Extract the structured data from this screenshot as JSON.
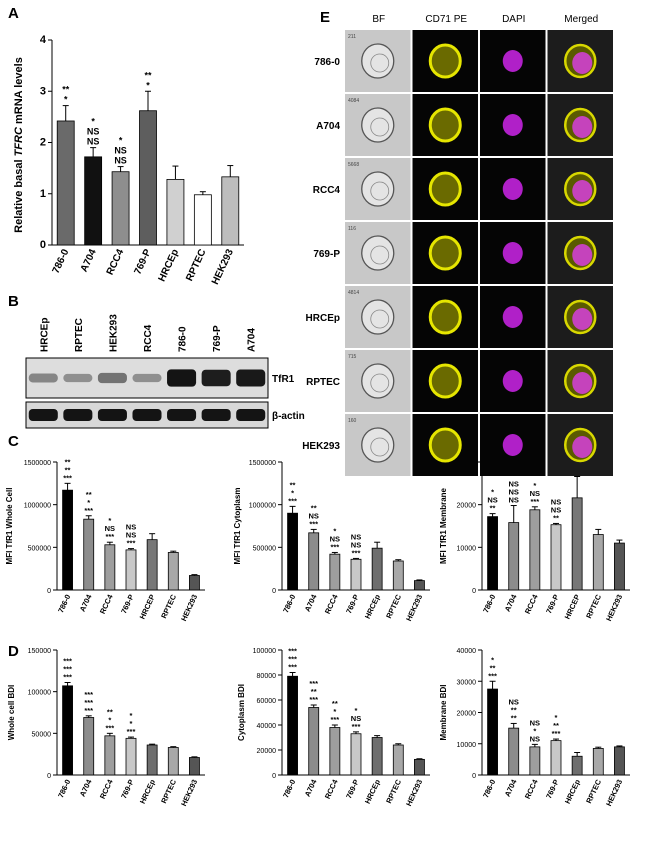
{
  "panels": {
    "A": "A",
    "B": "B",
    "C": "C",
    "D": "D",
    "E": "E"
  },
  "colors": {
    "786-0": "#000000",
    "A704": "#8c8c8c",
    "RCC4": "#9e9e9e",
    "769-P": "#c8c8c8",
    "HRCEp": "#6e6e6e",
    "RPTEC": "#a8a8a8",
    "HEK293": "#555555",
    "A_786-0": "#6a6a6a",
    "A_A704": "#111111",
    "A_RCC4": "#8e8e8e",
    "A_769-P": "#5e5e5e",
    "A_HRCEp": "#d0d0d0",
    "A_RPTEC": "#ffffff",
    "A_HEK293": "#bdbdbd"
  },
  "chart_data": [
    {
      "id": "A",
      "type": "bar",
      "categories": [
        "786-0",
        "A704",
        "RCC4",
        "769-P",
        "HRCEp",
        "RPTEC",
        "HEK293"
      ],
      "values": [
        2.42,
        1.72,
        1.43,
        2.62,
        1.28,
        0.98,
        1.33
      ],
      "errors": [
        0.3,
        0.18,
        0.1,
        0.38,
        0.26,
        0.06,
        0.22
      ],
      "ylim": [
        0,
        4
      ],
      "yticks": [
        0,
        1,
        2,
        3,
        4
      ],
      "ylabel": "Relative basal TFRC mRNA levels",
      "annotations": [
        [
          "**",
          "*"
        ],
        [
          "*",
          "NS",
          "NS"
        ],
        [
          "*",
          "NS",
          "NS"
        ],
        [
          "**",
          "*"
        ],
        [],
        [],
        []
      ]
    },
    {
      "id": "C1",
      "type": "bar",
      "categories": [
        "786-0",
        "A704",
        "RCC4",
        "769-P",
        "HRCEP",
        "RPTEC",
        "HEK293"
      ],
      "values": [
        1170000,
        830000,
        530000,
        470000,
        590000,
        440000,
        170000
      ],
      "errors": [
        80000,
        40000,
        30000,
        15000,
        70000,
        15000,
        10000
      ],
      "ylim": [
        0,
        1500000
      ],
      "yticks": [
        0,
        500000,
        1000000,
        1500000
      ],
      "ylabel": "MFI TfR1 Whole Cell",
      "annotations": [
        [
          "**",
          "**",
          "***"
        ],
        [
          "**",
          "*",
          "***"
        ],
        [
          "*",
          "NS",
          "***"
        ],
        [
          "NS",
          "NS",
          "***"
        ],
        [],
        [],
        []
      ]
    },
    {
      "id": "C2",
      "type": "bar",
      "categories": [
        "786-0",
        "A704",
        "RCC4",
        "769-P",
        "HRCEp",
        "RPTEC",
        "HEK293"
      ],
      "values": [
        900000,
        670000,
        420000,
        360000,
        490000,
        340000,
        110000
      ],
      "errors": [
        80000,
        40000,
        20000,
        10000,
        70000,
        15000,
        8000
      ],
      "ylim": [
        0,
        1500000
      ],
      "yticks": [
        0,
        500000,
        1000000,
        1500000
      ],
      "ylabel": "MFI TfR1 Cytoplasm",
      "annotations": [
        [
          "**",
          "*",
          "***"
        ],
        [
          "**",
          "NS",
          "***"
        ],
        [
          "*",
          "NS",
          "***"
        ],
        [
          "NS",
          "NS",
          "***"
        ],
        [],
        [],
        []
      ]
    },
    {
      "id": "C3",
      "type": "bar",
      "categories": [
        "786-0",
        "A704",
        "RCC4",
        "769-P",
        "HRCEP",
        "RPTEC",
        "HEK293"
      ],
      "values": [
        17200,
        15800,
        18800,
        15300,
        21600,
        13000,
        11000
      ],
      "errors": [
        700,
        4000,
        700,
        300,
        5000,
        1200,
        700
      ],
      "ylim": [
        0,
        30000
      ],
      "yticks": [
        0,
        10000,
        20000,
        30000
      ],
      "ylabel": "MFI TfR1 Membrane",
      "annotations": [
        [
          "*",
          "NS",
          "**"
        ],
        [
          "NS",
          "NS",
          "NS"
        ],
        [
          "*",
          "NS",
          "***"
        ],
        [
          "NS",
          "NS",
          "**"
        ],
        [],
        [],
        []
      ]
    },
    {
      "id": "D1",
      "type": "bar",
      "categories": [
        "786-0",
        "A704",
        "RCC4",
        "769-P",
        "HRCEp",
        "RPTEC",
        "HEK293"
      ],
      "values": [
        107000,
        69000,
        47000,
        44000,
        36000,
        33000,
        21000
      ],
      "errors": [
        4000,
        2000,
        3000,
        1500,
        1000,
        1000,
        800
      ],
      "ylim": [
        0,
        150000
      ],
      "yticks": [
        0,
        50000,
        100000,
        150000
      ],
      "ylabel": "Whole cell BDI",
      "annotations": [
        [
          "***",
          "***",
          "***"
        ],
        [
          "***",
          "***",
          "***"
        ],
        [
          "**",
          "*",
          "***"
        ],
        [
          "*",
          "*",
          "***"
        ],
        [],
        [],
        []
      ]
    },
    {
      "id": "D2",
      "type": "bar",
      "categories": [
        "786-0",
        "A704",
        "RCC4",
        "769-P",
        "HRCEp",
        "RPTEC",
        "HEK293"
      ],
      "values": [
        79000,
        54000,
        38000,
        33000,
        30000,
        24000,
        12500
      ],
      "errors": [
        3000,
        2000,
        2000,
        1500,
        1500,
        1000,
        500
      ],
      "ylim": [
        0,
        100000
      ],
      "yticks": [
        0,
        20000,
        40000,
        60000,
        80000,
        100000
      ],
      "ylabel": "Cytoplasm BDI",
      "annotations": [
        [
          "***",
          "***",
          "***"
        ],
        [
          "***",
          "**",
          "***"
        ],
        [
          "**",
          "*",
          "***"
        ],
        [
          "*",
          "NS",
          "***"
        ],
        [],
        [],
        []
      ]
    },
    {
      "id": "D3",
      "type": "bar",
      "categories": [
        "786-0",
        "A704",
        "RCC4",
        "769-P",
        "HRCEp",
        "RPTEC",
        "HEK293"
      ],
      "values": [
        27500,
        15000,
        9000,
        11000,
        6000,
        8500,
        9000
      ],
      "errors": [
        2500,
        1500,
        800,
        500,
        1200,
        400,
        300
      ],
      "ylim": [
        0,
        40000
      ],
      "yticks": [
        0,
        10000,
        20000,
        30000,
        40000
      ],
      "ylabel": "Membrane BDI",
      "annotations": [
        [
          "*",
          "**",
          "***"
        ],
        [
          "NS",
          "**",
          "**"
        ],
        [
          "NS",
          "*",
          "NS"
        ],
        [
          "*",
          "**",
          "***"
        ],
        [],
        [],
        []
      ]
    }
  ],
  "western_blot": {
    "lanes": [
      "HRCEp",
      "RPTEC",
      "HEK293",
      "RCC4",
      "786-0",
      "769-P",
      "A704"
    ],
    "bands": [
      "TfR1",
      "β-actin"
    ],
    "tfr1_intensity": [
      0.35,
      0.3,
      0.45,
      0.3,
      0.95,
      0.9,
      0.92
    ]
  },
  "imaging": {
    "columns": [
      "BF",
      "CD71 PE",
      "DAPI",
      "Merged"
    ],
    "rows": [
      {
        "label": "786-0",
        "id": "211"
      },
      {
        "label": "A704",
        "id": "4084"
      },
      {
        "label": "RCC4",
        "id": "5668"
      },
      {
        "label": "769-P",
        "id": "116"
      },
      {
        "label": "HRCEp",
        "id": "4814"
      },
      {
        "label": "RPTEC",
        "id": "715"
      },
      {
        "label": "HEK293",
        "id": "160"
      }
    ]
  }
}
